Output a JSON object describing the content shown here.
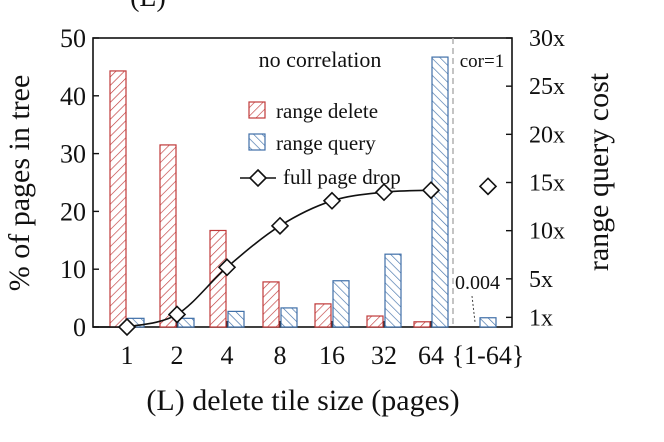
{
  "chart_data": {
    "type": "bar",
    "title_partial": "(L)",
    "xlabel": "(L) delete tile size (pages)",
    "ylabel": "% of pages in tree",
    "y2label": "range query cost",
    "categories": [
      "1",
      "2",
      "4",
      "8",
      "16",
      "32",
      "64"
    ],
    "extra_category": "{1-64}",
    "ylim": [
      0,
      50
    ],
    "yticks": [
      "0",
      "10",
      "20",
      "30",
      "40",
      "50"
    ],
    "y2lim": [
      0,
      30
    ],
    "y2ticks": [
      {
        "value": 1,
        "label": "1x"
      },
      {
        "value": 5,
        "label": "5x"
      },
      {
        "value": 10,
        "label": "10x"
      },
      {
        "value": 15,
        "label": "15x"
      },
      {
        "value": 20,
        "label": "20x"
      },
      {
        "value": 25,
        "label": "25x"
      },
      {
        "value": 30,
        "label": "30x"
      }
    ],
    "section_labels": {
      "left": "no correlation",
      "right": "cor=1"
    },
    "annotation": "0.004",
    "series": [
      {
        "name": "range delete",
        "kind": "bar",
        "color": "#c03a3a",
        "values": [
          44.3,
          31.5,
          16.7,
          7.8,
          4.0,
          1.9,
          0.9
        ],
        "extra_value": null
      },
      {
        "name": "range query",
        "kind": "bar",
        "color": "#3f6fa8",
        "values": [
          1.5,
          1.5,
          2.7,
          3.3,
          8.0,
          12.6,
          46.7
        ],
        "extra_value": 1.6
      },
      {
        "name": "full page drop",
        "kind": "line",
        "color": "#111111",
        "values": [
          0.0,
          1.3,
          6.2,
          10.5,
          13.1,
          14.0,
          14.2
        ],
        "extra_value": 14.6
      }
    ],
    "legend_position": "top-center",
    "grid": false
  }
}
